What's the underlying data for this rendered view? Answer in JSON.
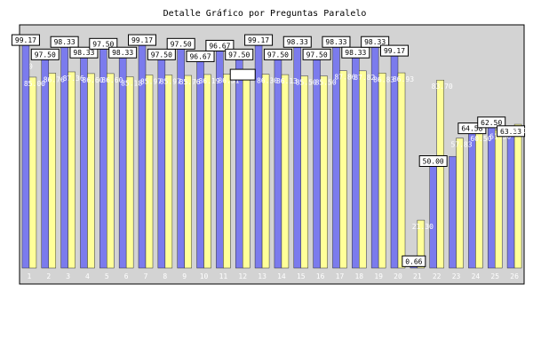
{
  "chart_data": {
    "type": "bar",
    "title": "Detalle Gráfico por Preguntas Paralelo",
    "xlabel": "",
    "ylabel": "",
    "ylim": [
      0,
      100
    ],
    "y_ticks": [
      10,
      20,
      30,
      40,
      50,
      60,
      70,
      80,
      90
    ],
    "grid": false,
    "legend": "none",
    "categories": [
      "1",
      "2",
      "3",
      "4",
      "5",
      "6",
      "7",
      "8",
      "9",
      "10",
      "11",
      "12",
      "13",
      "14",
      "15",
      "16",
      "17",
      "18",
      "19",
      "20",
      "21",
      "22",
      "23",
      "24",
      "25",
      "26"
    ],
    "series": [
      {
        "color": "#7b7bed",
        "values": [
          99.17,
          97.5,
          98.33,
          98.33,
          97.5,
          98.33,
          99.17,
          97.5,
          97.5,
          96.67,
          96.67,
          97.5,
          99.17,
          97.5,
          98.33,
          97.5,
          98.33,
          98.33,
          98.33,
          99.17,
          0.66,
          50.0,
          49.72,
          64.58,
          62.5,
          63.33
        ],
        "labels": [
          "99.17",
          "97.50",
          "98.33",
          "98.33",
          "97.50",
          "98.33",
          "99.17",
          "97.50",
          "97.50",
          "96.67",
          "96.67",
          "97.50",
          "99.17",
          "97.50",
          "98.33",
          "97.50",
          "98.33",
          "98.33",
          "98.33",
          "99.17",
          "0.66",
          "50.00",
          "",
          "64.58",
          "62.50",
          "63.33"
        ]
      },
      {
        "color": "#ffff99",
        "values": [
          85.0,
          86.76,
          87.36,
          86.6,
          86.6,
          85.18,
          85.97,
          85.97,
          85.76,
          86.19,
          86.31,
          85.5,
          86.3,
          86.13,
          85.5,
          85.5,
          87.86,
          87.82,
          86.83,
          86.93,
          21.3,
          83.7,
          57.83,
          60.5,
          61.5,
          64.0
        ],
        "labels": [
          "85.00",
          "86.76",
          "87.36",
          "86.60",
          "86.60",
          "85.18",
          "85.97",
          "85.97",
          "85.76",
          "86.19",
          "86.31",
          "",
          "86.30",
          "86.13",
          "85.50",
          "85.50",
          "87.86",
          "87.82",
          "86.83",
          "86.93",
          "21.30",
          "83.70",
          "57.83",
          "60.50",
          "61.50",
          "64.00"
        ]
      }
    ]
  }
}
